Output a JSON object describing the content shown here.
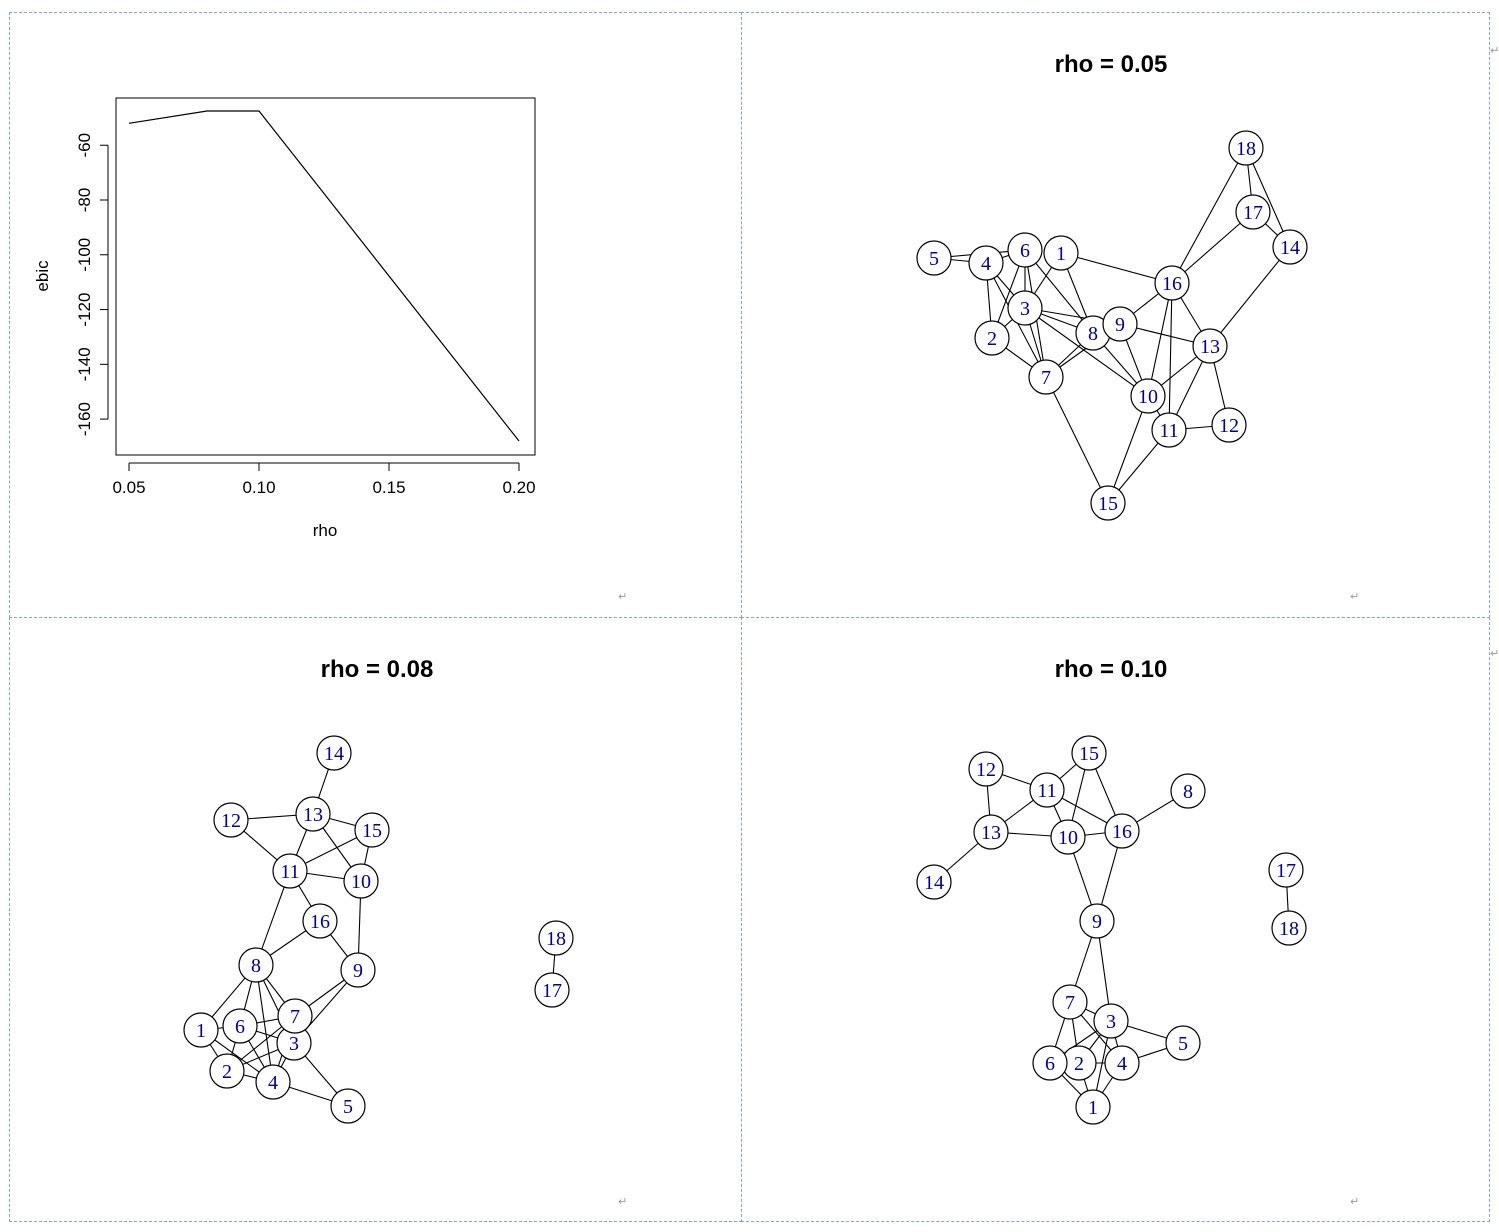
{
  "layout_marks": {
    "return_glyph": "↵"
  },
  "chart_data": [
    {
      "type": "line",
      "title": "",
      "xlabel": "rho",
      "ylabel": "ebic",
      "x": [
        0.05,
        0.08,
        0.1,
        0.2
      ],
      "y": [
        -52,
        -47.5,
        -47.5,
        -168
      ],
      "xticks": [
        "0.05",
        "0.10",
        "0.15",
        "0.20"
      ],
      "yticks": [
        "-60",
        "-80",
        "-100",
        "-120",
        "-140",
        "-160"
      ],
      "xlim": [
        0.05,
        0.2
      ],
      "ylim": [
        -168,
        -47.5
      ],
      "grid": false
    },
    {
      "type": "network",
      "title": "rho = 0.05",
      "nodes": [
        "1",
        "2",
        "3",
        "4",
        "5",
        "6",
        "7",
        "8",
        "9",
        "10",
        "11",
        "12",
        "13",
        "14",
        "15",
        "16",
        "17",
        "18"
      ],
      "edges": [
        [
          "5",
          "4"
        ],
        [
          "5",
          "6"
        ],
        [
          "4",
          "6"
        ],
        [
          "4",
          "3"
        ],
        [
          "4",
          "2"
        ],
        [
          "4",
          "7"
        ],
        [
          "6",
          "3"
        ],
        [
          "6",
          "2"
        ],
        [
          "6",
          "7"
        ],
        [
          "6",
          "8"
        ],
        [
          "1",
          "3"
        ],
        [
          "1",
          "8"
        ],
        [
          "1",
          "16"
        ],
        [
          "3",
          "2"
        ],
        [
          "3",
          "7"
        ],
        [
          "3",
          "8"
        ],
        [
          "3",
          "9"
        ],
        [
          "3",
          "10"
        ],
        [
          "2",
          "7"
        ],
        [
          "7",
          "8"
        ],
        [
          "7",
          "9"
        ],
        [
          "7",
          "15"
        ],
        [
          "8",
          "9"
        ],
        [
          "8",
          "10"
        ],
        [
          "9",
          "16"
        ],
        [
          "9",
          "10"
        ],
        [
          "9",
          "13"
        ],
        [
          "16",
          "10"
        ],
        [
          "16",
          "11"
        ],
        [
          "16",
          "13"
        ],
        [
          "16",
          "17"
        ],
        [
          "16",
          "18"
        ],
        [
          "18",
          "17"
        ],
        [
          "18",
          "14"
        ],
        [
          "17",
          "14"
        ],
        [
          "14",
          "13"
        ],
        [
          "13",
          "10"
        ],
        [
          "13",
          "11"
        ],
        [
          "13",
          "12"
        ],
        [
          "11",
          "12"
        ],
        [
          "10",
          "11"
        ],
        [
          "10",
          "15"
        ],
        [
          "11",
          "15"
        ]
      ]
    },
    {
      "type": "network",
      "title": "rho = 0.08",
      "nodes": [
        "1",
        "2",
        "3",
        "4",
        "5",
        "6",
        "7",
        "8",
        "9",
        "10",
        "11",
        "12",
        "13",
        "14",
        "15",
        "16",
        "17",
        "18"
      ],
      "edges": [
        [
          "14",
          "13"
        ],
        [
          "12",
          "13"
        ],
        [
          "12",
          "11"
        ],
        [
          "13",
          "15"
        ],
        [
          "13",
          "11"
        ],
        [
          "13",
          "10"
        ],
        [
          "15",
          "10"
        ],
        [
          "15",
          "11"
        ],
        [
          "11",
          "10"
        ],
        [
          "11",
          "16"
        ],
        [
          "11",
          "8"
        ],
        [
          "10",
          "9"
        ],
        [
          "16",
          "9"
        ],
        [
          "16",
          "8"
        ],
        [
          "9",
          "3"
        ],
        [
          "9",
          "7"
        ],
        [
          "8",
          "1"
        ],
        [
          "8",
          "6"
        ],
        [
          "8",
          "7"
        ],
        [
          "8",
          "3"
        ],
        [
          "8",
          "4"
        ],
        [
          "1",
          "6"
        ],
        [
          "1",
          "2"
        ],
        [
          "1",
          "4"
        ],
        [
          "6",
          "7"
        ],
        [
          "6",
          "3"
        ],
        [
          "6",
          "2"
        ],
        [
          "6",
          "4"
        ],
        [
          "7",
          "3"
        ],
        [
          "7",
          "2"
        ],
        [
          "7",
          "4"
        ],
        [
          "3",
          "2"
        ],
        [
          "3",
          "4"
        ],
        [
          "3",
          "5"
        ],
        [
          "2",
          "4"
        ],
        [
          "4",
          "5"
        ],
        [
          "18",
          "17"
        ]
      ]
    },
    {
      "type": "network",
      "title": "rho = 0.10",
      "nodes": [
        "1",
        "2",
        "3",
        "4",
        "5",
        "6",
        "7",
        "8",
        "9",
        "10",
        "11",
        "12",
        "13",
        "14",
        "15",
        "16",
        "17",
        "18"
      ],
      "edges": [
        [
          "12",
          "11"
        ],
        [
          "12",
          "13"
        ],
        [
          "11",
          "15"
        ],
        [
          "11",
          "13"
        ],
        [
          "11",
          "10"
        ],
        [
          "11",
          "16"
        ],
        [
          "15",
          "10"
        ],
        [
          "15",
          "16"
        ],
        [
          "13",
          "10"
        ],
        [
          "13",
          "14"
        ],
        [
          "10",
          "16"
        ],
        [
          "10",
          "9"
        ],
        [
          "16",
          "8"
        ],
        [
          "16",
          "9"
        ],
        [
          "9",
          "7"
        ],
        [
          "9",
          "3"
        ],
        [
          "7",
          "3"
        ],
        [
          "7",
          "6"
        ],
        [
          "7",
          "2"
        ],
        [
          "7",
          "4"
        ],
        [
          "3",
          "2"
        ],
        [
          "3",
          "4"
        ],
        [
          "3",
          "1"
        ],
        [
          "3",
          "5"
        ],
        [
          "3",
          "6"
        ],
        [
          "6",
          "2"
        ],
        [
          "6",
          "1"
        ],
        [
          "2",
          "1"
        ],
        [
          "2",
          "4"
        ],
        [
          "4",
          "1"
        ],
        [
          "4",
          "5"
        ],
        [
          "17",
          "18"
        ]
      ]
    }
  ]
}
